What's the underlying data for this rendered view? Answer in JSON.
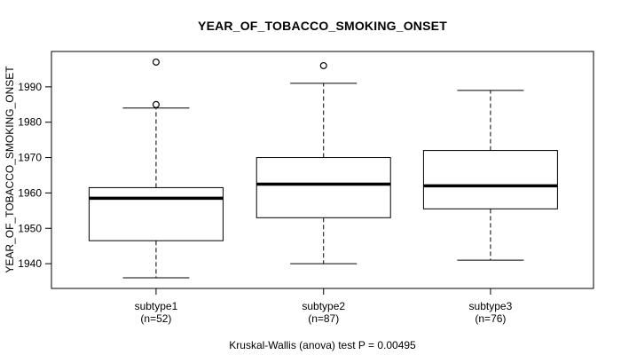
{
  "figure": {
    "background_color": "#ffffff",
    "foreground_color": "#000000"
  },
  "chart_data": {
    "type": "boxplot",
    "title": "YEAR_OF_TOBACCO_SMOKING_ONSET",
    "ylabel": "YEAR_OF_TOBACCO_SMOKING_ONSET",
    "xlabel": "",
    "caption": "Kruskal-Wallis (anova) test P = 0.00495",
    "p_value": 0.00495,
    "grid": "off",
    "legend": "none",
    "ylim": [
      1933,
      2000
    ],
    "yticks": [
      1940,
      1950,
      1960,
      1970,
      1980,
      1990
    ],
    "groups": [
      {
        "label": "subtype1",
        "n_label": "(n=52)",
        "n": 52,
        "whisker_low": 1936,
        "q1": 1946.5,
        "median": 1958.5,
        "q3": 1961.5,
        "whisker_high": 1984,
        "outliers": [
          1985,
          1997
        ]
      },
      {
        "label": "subtype2",
        "n_label": "(n=87)",
        "n": 87,
        "whisker_low": 1940,
        "q1": 1953,
        "median": 1962.5,
        "q3": 1970,
        "whisker_high": 1991,
        "outliers": [
          1996
        ]
      },
      {
        "label": "subtype3",
        "n_label": "(n=76)",
        "n": 76,
        "whisker_low": 1941,
        "q1": 1955.5,
        "median": 1962,
        "q3": 1972,
        "whisker_high": 1989,
        "outliers": []
      }
    ]
  }
}
